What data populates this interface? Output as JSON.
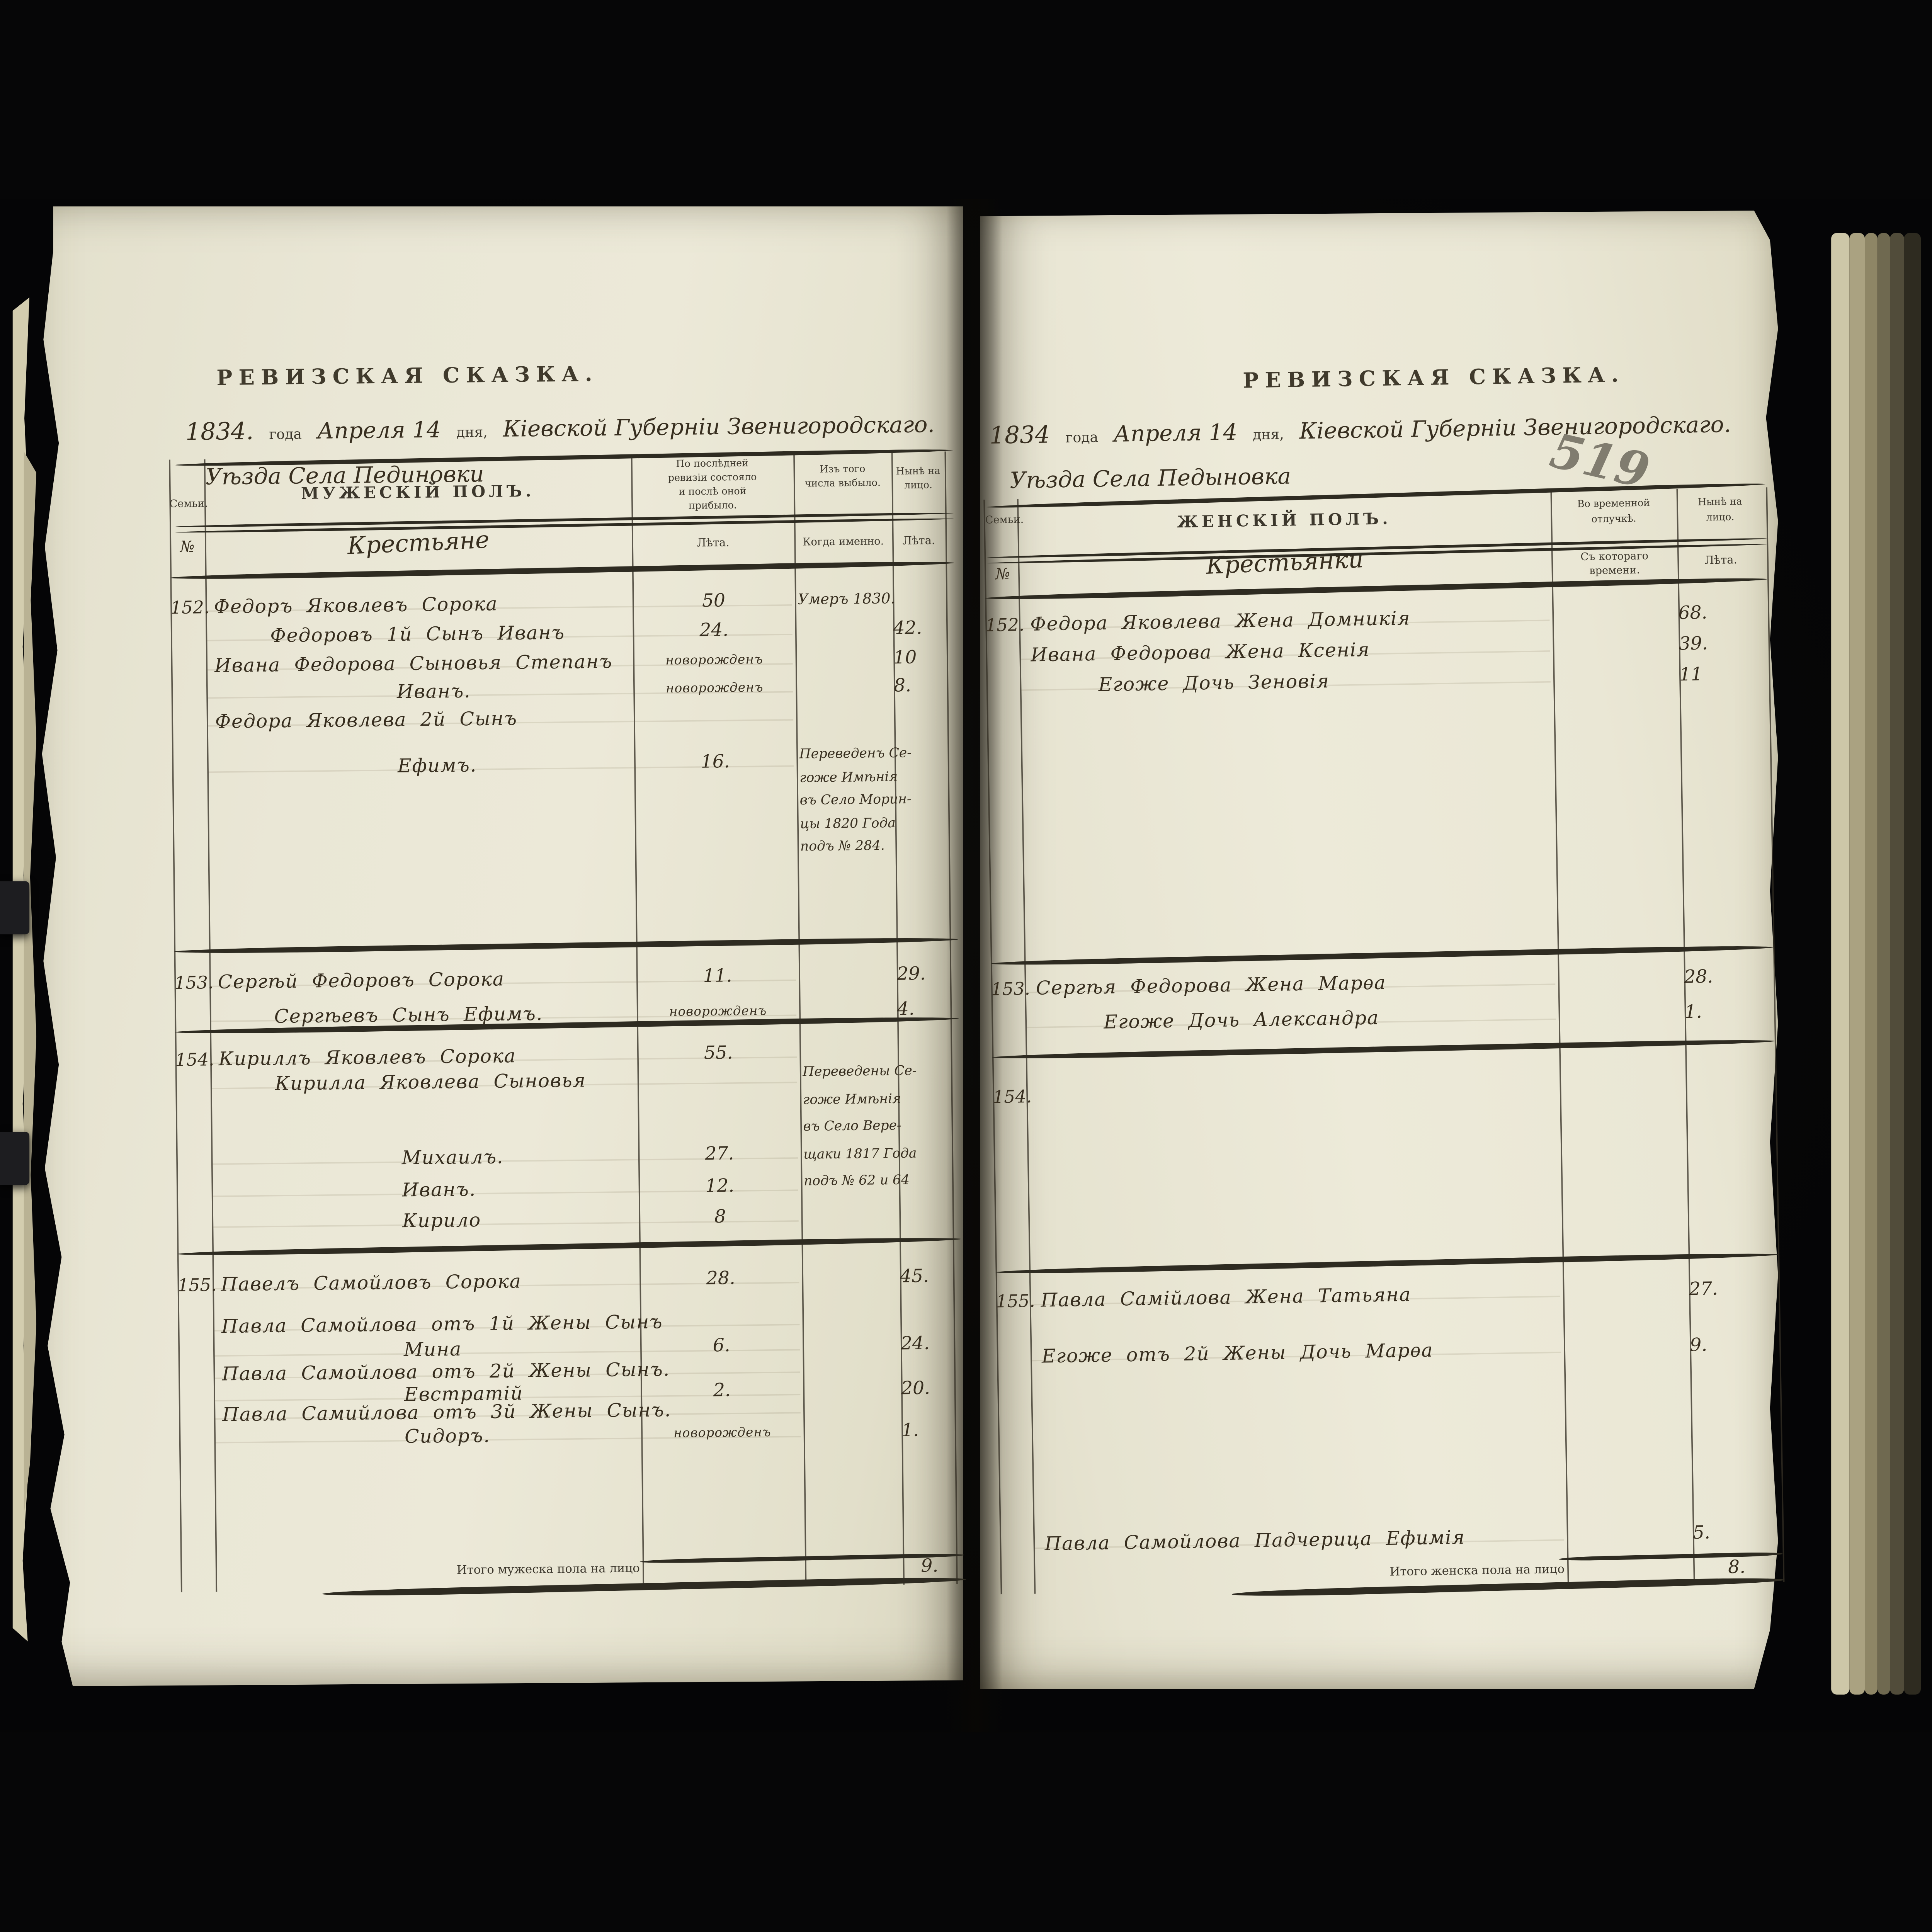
{
  "colors": {
    "background": "#060607",
    "paper": "#eae7d6",
    "printed_ink": "#3c372c",
    "handwriting_ink": "#372e1f",
    "pencil": "#6e6a5e"
  },
  "book": {
    "left_page": {
      "title": "РЕВИЗСКАЯ СКАЗКА.",
      "date": {
        "year": "1834.",
        "year_suffix": "года",
        "day": "Апреля 14",
        "day_suffix": "дня,",
        "place": "Кіевской Губерніи Звенигородскаго.",
        "place_line2": "Уѣзда Села Пединовки"
      },
      "header": {
        "family_top": "Семьи.",
        "family_bottom": "№",
        "main_top": "МУЖЕСКІЙ ПОЛЪ.",
        "main_script": "Крестьяне",
        "col3_top": "По послѣдней ревизіи состояло и послѣ оной прибыло.",
        "col3_bottom": "Лѣта.",
        "col4_top": "Изъ того числа выбыло.",
        "col4_bottom": "Когда именно.",
        "col5_top": "Нынѣ на лицо.",
        "col5_bottom": "Лѣта."
      },
      "families": [
        {
          "no": "152.",
          "rows": [
            {
              "name": "Федоръ Яковлевъ Сорока",
              "indent": 0,
              "last_age": "50",
              "departed": "Умеръ 1830.",
              "now_age": ""
            },
            {
              "name": "Федоровъ 1й Сынъ Иванъ",
              "indent": 1,
              "last_age": "24.",
              "departed": "",
              "now_age": "42."
            },
            {
              "name": "Ивана Федорова Сыновья Степанъ",
              "indent": 0,
              "last_age": "новорожденъ",
              "departed": "",
              "now_age": "10"
            },
            {
              "name": "Иванъ.",
              "indent": 2,
              "last_age": "новорожденъ",
              "departed": "",
              "now_age": "8."
            },
            {
              "name": "Федора Яковлева 2й Сынъ",
              "indent": 0,
              "last_age": "",
              "departed": "",
              "now_age": ""
            },
            {
              "name": "Ефимъ.",
              "indent": 2,
              "last_age": "16.",
              "departed": "",
              "now_age": ""
            }
          ],
          "remark_lines": [
            "Переведенъ Се-",
            "гоже Имѣнія",
            "въ Село Морин-",
            "цы 1820 Года",
            "подъ № 284."
          ]
        },
        {
          "no": "153.",
          "rows": [
            {
              "name": "Сергѣй Федоровъ Сорока",
              "indent": 0,
              "last_age": "11.",
              "departed": "",
              "now_age": "29."
            },
            {
              "name": "Сергѣевъ Сынъ Ефимъ.",
              "indent": 1,
              "last_age": "новорожденъ",
              "departed": "",
              "now_age": "4."
            }
          ],
          "remark_lines": []
        },
        {
          "no": "154.",
          "rows": [
            {
              "name": "Кириллъ Яковлевъ Сорока",
              "indent": 0,
              "last_age": "55.",
              "departed": "",
              "now_age": ""
            },
            {
              "name": "Кирилла Яковлева Сыновья",
              "indent": 1,
              "last_age": "",
              "departed": "",
              "now_age": ""
            },
            {
              "name": "Михаилъ.",
              "indent": 2,
              "last_age": "27.",
              "departed": "",
              "now_age": ""
            },
            {
              "name": "Иванъ.",
              "indent": 2,
              "last_age": "12.",
              "departed": "",
              "now_age": ""
            },
            {
              "name": "Кирило",
              "indent": 2,
              "last_age": "8",
              "departed": "",
              "now_age": ""
            }
          ],
          "remark_lines": [
            "Переведены Се-",
            "гоже Имѣнія",
            "въ Село Вере-",
            "щаки 1817 Года",
            "подъ № 62 и 64"
          ]
        },
        {
          "no": "155.",
          "rows": [
            {
              "name": "Павелъ Самойловъ Сорока",
              "indent": 0,
              "last_age": "28.",
              "departed": "",
              "now_age": "45."
            },
            {
              "name": "Павла Самойлова отъ 1й Жены Сынъ",
              "indent": 0,
              "last_age": "",
              "departed": "",
              "now_age": ""
            },
            {
              "name": "Мина",
              "indent": 2,
              "last_age": "6.",
              "departed": "",
              "now_age": "24."
            },
            {
              "name": "Павла Самойлова отъ 2й Жены Сынъ.",
              "indent": 0,
              "last_age": "",
              "departed": "",
              "now_age": ""
            },
            {
              "name": "Евстратій",
              "indent": 2,
              "last_age": "2.",
              "departed": "",
              "now_age": "20."
            },
            {
              "name": "Павла Самийлова отъ 3й Жены Сынъ.",
              "indent": 0,
              "last_age": "",
              "departed": "",
              "now_age": ""
            },
            {
              "name": "Сидоръ.",
              "indent": 2,
              "last_age": "новорожденъ",
              "departed": "",
              "now_age": "1."
            }
          ],
          "remark_lines": []
        }
      ],
      "total": {
        "label": "Итого мужеска пола на лицо",
        "value": "9."
      }
    },
    "right_page": {
      "title": "РЕВИЗСКАЯ СКАЗКА.",
      "page_number": "519",
      "date": {
        "year": "1834",
        "year_suffix": "года",
        "day": "Апреля 14",
        "day_suffix": "дня,",
        "place": "Кіевской Губерніи Звенигородскаго.",
        "place_line2": "Уѣзда Села Педыновка"
      },
      "header": {
        "family_top": "Семьи.",
        "family_bottom": "№",
        "main_top": "ЖЕНСКІЙ ПОЛЪ.",
        "main_script": "Крестьянки",
        "col3_top": "Во временной отлучкѣ.",
        "col3_bottom": "Съ котораго времени.",
        "col4_top": "Нынѣ на лицо.",
        "col4_bottom": "Лѣта."
      },
      "families": [
        {
          "no": "152.",
          "rows": [
            {
              "name": "Федора Яковлева Жена Домникія",
              "indent": 0,
              "now_age": "68."
            },
            {
              "name": "Ивана Федорова Жена Ксенія",
              "indent": 0,
              "now_age": "39."
            },
            {
              "name": "Егоже Дочь Зеновія",
              "indent": 1,
              "now_age": "11"
            }
          ]
        },
        {
          "no": "153.",
          "rows": [
            {
              "name": "Сергѣя Федорова Жена Марѳа",
              "indent": 0,
              "now_age": "28."
            },
            {
              "name": "Егоже Дочь Александра",
              "indent": 1,
              "now_age": "1."
            }
          ]
        },
        {
          "no": "154.",
          "rows": []
        },
        {
          "no": "155.",
          "rows": [
            {
              "name": "Павла Самійлова Жена Татьяна",
              "indent": 0,
              "now_age": "27."
            },
            {
              "name": "Егоже отъ 2й Жены Дочь Марѳа",
              "indent": 0,
              "now_age": "9."
            },
            {
              "name": "Павла Самойлова Падчерица Ефимія",
              "indent": 0,
              "now_age": "5."
            }
          ]
        }
      ],
      "total": {
        "label": "Итого женска пола на лицо",
        "value": "8."
      }
    }
  }
}
